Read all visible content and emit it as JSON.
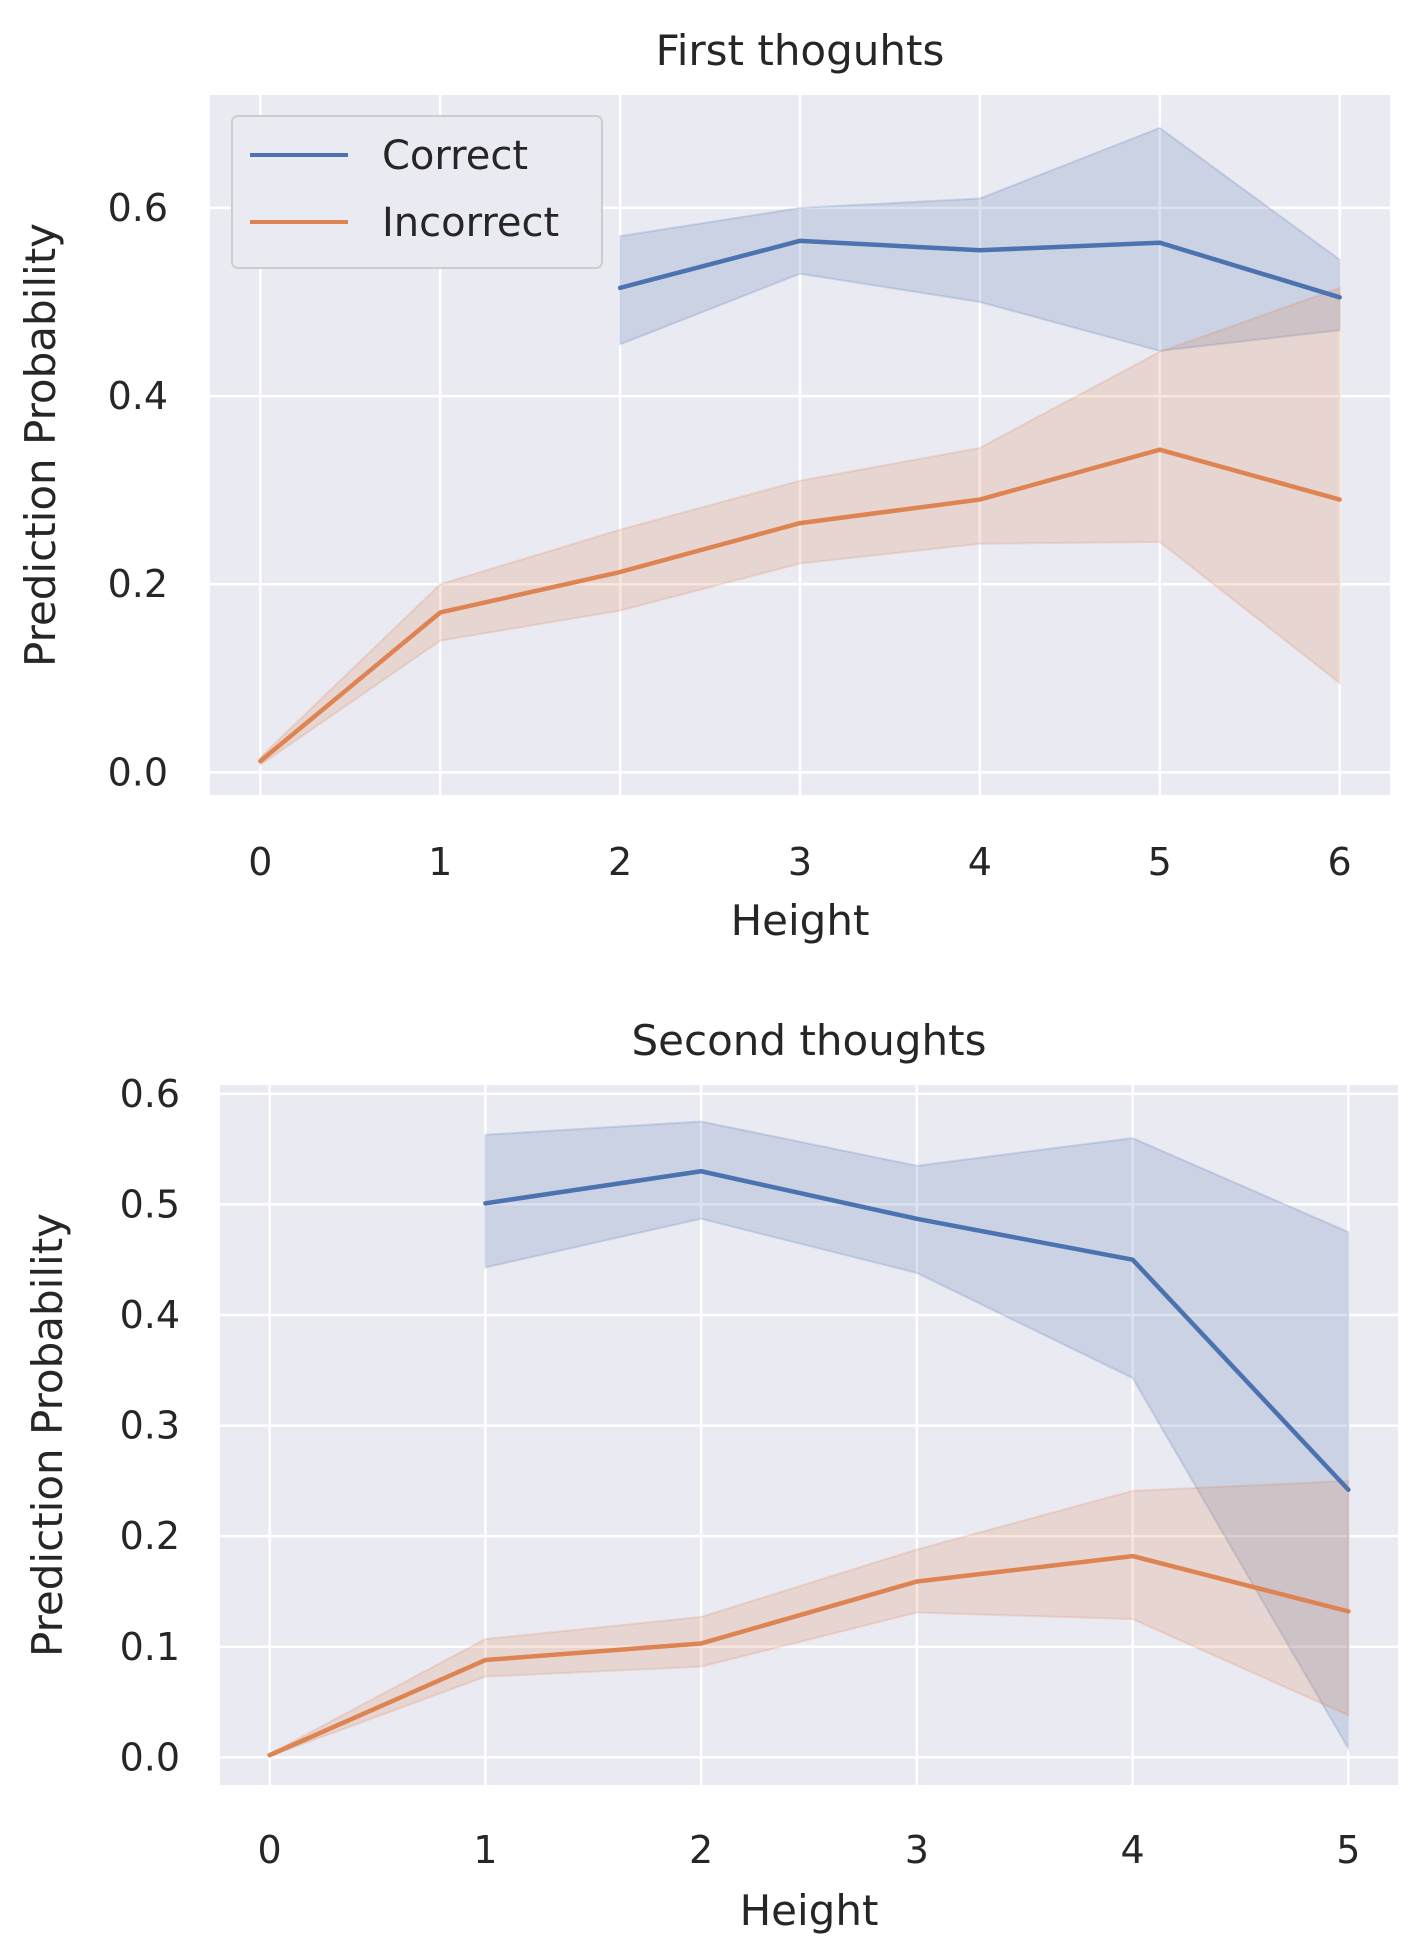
{
  "chart_data": [
    {
      "type": "line",
      "title": "First thoguhts",
      "xlabel": "Height",
      "ylabel": "Prediction Probability",
      "x_ticks": [
        0,
        1,
        2,
        3,
        4,
        5,
        6
      ],
      "y_ticks": [
        "0.0",
        "0.2",
        "0.4",
        "0.6"
      ],
      "xlim": [
        -0.28,
        6.28
      ],
      "ylim": [
        -0.024,
        0.72
      ],
      "grid": true,
      "legend": {
        "position": "upper-left",
        "entries": [
          "Correct",
          "Incorrect"
        ]
      },
      "series": [
        {
          "name": "Correct",
          "color": "#4c72b0",
          "x": [
            2,
            3,
            4,
            5,
            6
          ],
          "y": [
            0.515,
            0.565,
            0.555,
            0.563,
            0.505
          ],
          "ci_low": [
            0.455,
            0.53,
            0.5,
            0.448,
            0.47
          ],
          "ci_high": [
            0.57,
            0.6,
            0.61,
            0.685,
            0.545
          ]
        },
        {
          "name": "Incorrect",
          "color": "#dd8452",
          "x": [
            0,
            1,
            2,
            3,
            4,
            5,
            6
          ],
          "y": [
            0.012,
            0.17,
            0.213,
            0.265,
            0.29,
            0.343,
            0.29
          ],
          "ci_low": [
            0.008,
            0.14,
            0.172,
            0.222,
            0.243,
            0.245,
            0.095
          ],
          "ci_high": [
            0.016,
            0.2,
            0.258,
            0.31,
            0.345,
            0.447,
            0.515
          ]
        }
      ]
    },
    {
      "type": "line",
      "title": "Second thoughts",
      "xlabel": "Height",
      "ylabel": "Prediction Probability",
      "x_ticks": [
        0,
        1,
        2,
        3,
        4,
        5
      ],
      "y_ticks": [
        "0.0",
        "0.1",
        "0.2",
        "0.3",
        "0.4",
        "0.5",
        "0.6"
      ],
      "xlim": [
        -0.23,
        5.23
      ],
      "ylim": [
        -0.025,
        0.608
      ],
      "grid": true,
      "series": [
        {
          "name": "Correct",
          "color": "#4c72b0",
          "x": [
            1,
            2,
            3,
            4,
            5
          ],
          "y": [
            0.501,
            0.53,
            0.487,
            0.45,
            0.242
          ],
          "ci_low": [
            0.443,
            0.487,
            0.438,
            0.343,
            0.008
          ],
          "ci_high": [
            0.563,
            0.575,
            0.535,
            0.56,
            0.475
          ]
        },
        {
          "name": "Incorrect",
          "color": "#dd8452",
          "x": [
            0,
            1,
            2,
            3,
            4,
            5
          ],
          "y": [
            0.002,
            0.088,
            0.103,
            0.159,
            0.182,
            0.132
          ],
          "ci_low": [
            0.001,
            0.073,
            0.082,
            0.131,
            0.125,
            0.038
          ],
          "ci_high": [
            0.003,
            0.107,
            0.127,
            0.188,
            0.241,
            0.25
          ]
        }
      ]
    }
  ]
}
